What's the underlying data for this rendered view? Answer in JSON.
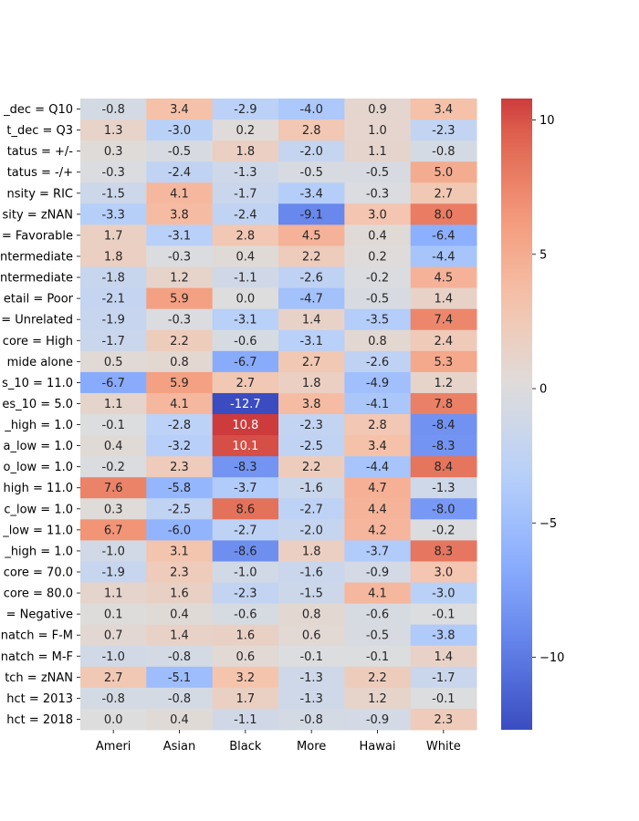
{
  "chart_data": {
    "type": "heatmap",
    "title": "",
    "xlabel": "",
    "ylabel": "",
    "columns": [
      "Ameri",
      "Asian",
      "Black",
      "More",
      "Hawai",
      "White"
    ],
    "rows": [
      "_dec = Q10",
      "t_dec = Q3",
      "tatus = +/-",
      "tatus = -/+",
      "nsity = RIC",
      "sity = zNAN",
      "= Favorable",
      "ntermediate",
      "ntermediate",
      "etail = Poor",
      "= Unrelated",
      "core = High",
      "mide alone",
      "s_10 = 11.0",
      "es_10 = 5.0",
      "_high = 1.0",
      "a_low = 1.0",
      "o_low = 1.0",
      "high = 11.0",
      "c_low = 1.0",
      "_low = 11.0",
      "_high = 1.0",
      "core = 70.0",
      "core = 80.0",
      "= Negative",
      "natch = F-M",
      "natch = M-F",
      "tch = zNAN",
      "hct = 2013",
      "hct = 2018"
    ],
    "values": [
      [
        -0.8,
        3.4,
        -2.9,
        -4.0,
        0.9,
        3.4
      ],
      [
        1.3,
        -3.0,
        0.2,
        2.8,
        1.0,
        -2.3
      ],
      [
        0.3,
        -0.5,
        1.8,
        -2.0,
        1.1,
        -0.8
      ],
      [
        -0.3,
        -2.4,
        -1.3,
        -0.5,
        -0.5,
        5.0
      ],
      [
        -1.5,
        4.1,
        -1.7,
        -3.4,
        -0.3,
        2.7
      ],
      [
        -3.3,
        3.8,
        -2.4,
        -9.1,
        3.0,
        8.0
      ],
      [
        1.7,
        -3.1,
        2.8,
        4.5,
        0.4,
        -6.4
      ],
      [
        1.8,
        -0.3,
        0.4,
        2.2,
        0.2,
        -4.4
      ],
      [
        -1.8,
        1.2,
        -1.1,
        -2.6,
        -0.2,
        4.5
      ],
      [
        -2.1,
        5.9,
        0.0,
        -4.7,
        -0.5,
        1.4
      ],
      [
        -1.9,
        -0.3,
        -3.1,
        1.4,
        -3.5,
        7.4
      ],
      [
        -1.7,
        2.2,
        -0.6,
        -3.1,
        0.8,
        2.4
      ],
      [
        0.5,
        0.8,
        -6.7,
        2.7,
        -2.6,
        5.3
      ],
      [
        -6.7,
        5.9,
        2.7,
        1.8,
        -4.9,
        1.2
      ],
      [
        1.1,
        4.1,
        -12.7,
        3.8,
        -4.1,
        7.8
      ],
      [
        -0.1,
        -2.8,
        10.8,
        -2.3,
        2.8,
        -8.4
      ],
      [
        0.4,
        -3.2,
        10.1,
        -2.5,
        3.4,
        -8.3
      ],
      [
        -0.2,
        2.3,
        -8.3,
        2.2,
        -4.4,
        8.4
      ],
      [
        7.6,
        -5.8,
        -3.7,
        -1.6,
        4.7,
        -1.3
      ],
      [
        0.3,
        -2.5,
        8.6,
        -2.7,
        4.4,
        -8.0
      ],
      [
        6.7,
        -6.0,
        -2.7,
        -2.0,
        4.2,
        -0.2
      ],
      [
        -1.0,
        3.1,
        -8.6,
        1.8,
        -3.7,
        8.3
      ],
      [
        -1.9,
        2.3,
        -1.0,
        -1.6,
        -0.9,
        3.0
      ],
      [
        1.1,
        1.6,
        -2.3,
        -1.5,
        4.1,
        -3.0
      ],
      [
        0.1,
        0.4,
        -0.6,
        0.8,
        -0.6,
        -0.1
      ],
      [
        0.7,
        1.4,
        1.6,
        0.6,
        -0.5,
        -3.8
      ],
      [
        -1.0,
        -0.8,
        0.6,
        -0.1,
        -0.1,
        1.4
      ],
      [
        2.7,
        -5.1,
        3.2,
        -1.3,
        2.2,
        -1.7
      ],
      [
        -0.8,
        -0.8,
        1.7,
        -1.3,
        1.2,
        -0.1
      ],
      [
        0.0,
        0.4,
        -1.1,
        -0.8,
        -0.9,
        2.3
      ]
    ],
    "colorbar": {
      "colormap": "coolwarm",
      "vmin": -12.7,
      "vmax": 10.8,
      "center": 0,
      "ticks": [
        10,
        5,
        0,
        -5,
        -10
      ],
      "tick_labels": [
        "10",
        "5",
        "0",
        "−5",
        "−10"
      ]
    }
  }
}
